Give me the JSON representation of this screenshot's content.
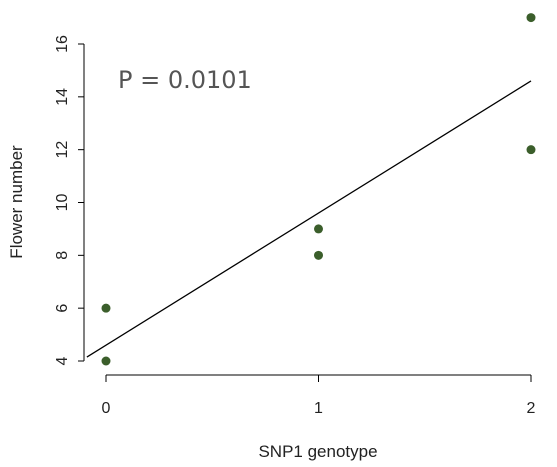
{
  "chart_data": {
    "type": "scatter",
    "title": "",
    "xlabel": "SNP1 genotype",
    "ylabel": "Flower number",
    "xlim": [
      -0.1,
      2.0
    ],
    "ylim": [
      3.9,
      17.0
    ],
    "xticks": [
      0,
      1,
      2
    ],
    "yticks": [
      4,
      6,
      8,
      10,
      12,
      14,
      16
    ],
    "grid": false,
    "points": [
      {
        "x": 0,
        "y": 6
      },
      {
        "x": 0,
        "y": 4
      },
      {
        "x": 1,
        "y": 9
      },
      {
        "x": 1,
        "y": 8
      },
      {
        "x": 2,
        "y": 17
      },
      {
        "x": 2,
        "y": 12
      }
    ],
    "fit_line": {
      "intercept": 4.6,
      "slope": 5.0
    },
    "annotation": "P = 0.0101",
    "colors": {
      "points": "#3b5e2b",
      "line": "#000000"
    }
  }
}
